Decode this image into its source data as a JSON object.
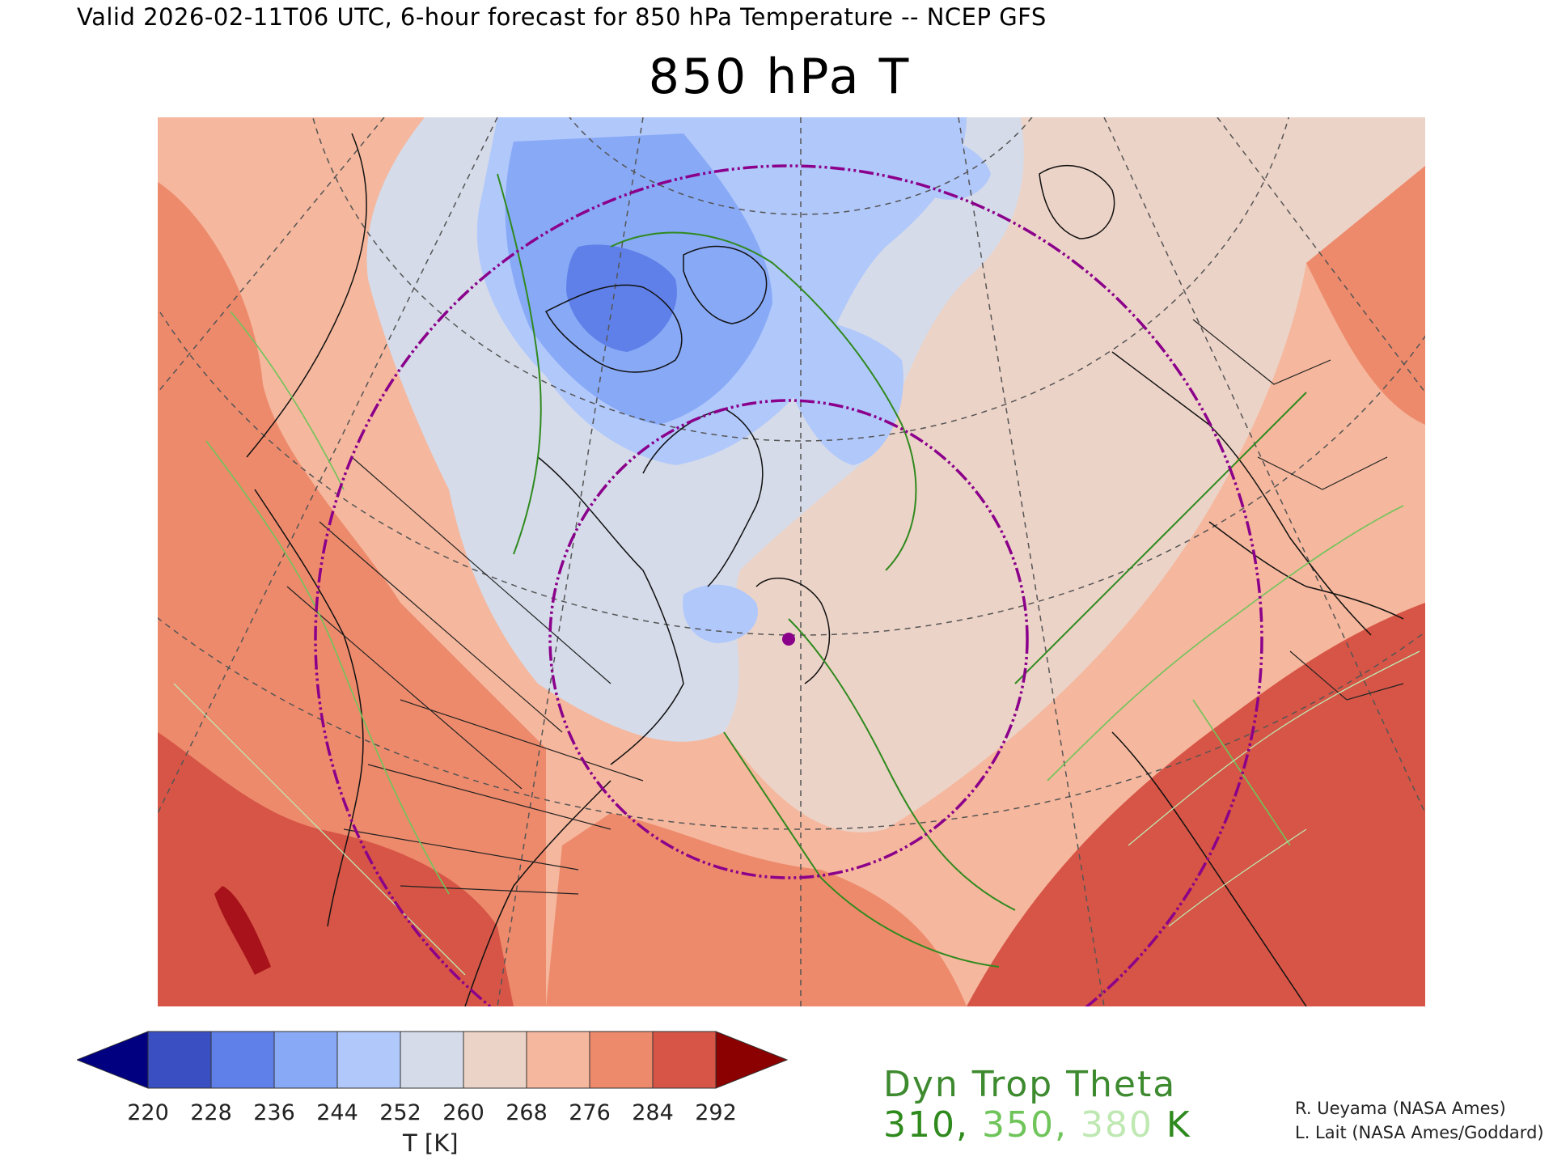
{
  "header": {
    "valid_line": "Valid 2026-02-11T06 UTC, 6-hour forecast for 850 hPa Temperature -- NCEP GFS",
    "title": "850 hPa T"
  },
  "colorbar": {
    "unit_label": "T [K]",
    "ticks": [
      "220",
      "228",
      "236",
      "244",
      "252",
      "260",
      "268",
      "276",
      "284",
      "292"
    ],
    "colors": [
      "#000080",
      "#3a4fc2",
      "#5f80e8",
      "#88a9f6",
      "#b1c8fb",
      "#d5dbe9",
      "#ecd3c7",
      "#f5b79d",
      "#ed8a6c",
      "#d65546",
      "#8b0000"
    ]
  },
  "legend": {
    "title": "Dyn Trop Theta",
    "values": [
      "310",
      "350",
      "380"
    ],
    "separator": ", ",
    "unit": " K",
    "colors": [
      "#2f8a1e",
      "#6fc45a",
      "#bfe8b2"
    ]
  },
  "credits": [
    "R. Ueyama (NASA Ames)",
    "L. Lait (NASA Ames/Goddard)"
  ],
  "map": {
    "marker_color": "#8b008b",
    "range_ring_color": "#8b008b",
    "fill_regions_order": [
      "warm-background",
      "arctic-cold-dome",
      "canadian-archipelago-core",
      "hudson-cold-pool",
      "atlantic-warm-sector",
      "subtropical-hot-zone"
    ]
  }
}
